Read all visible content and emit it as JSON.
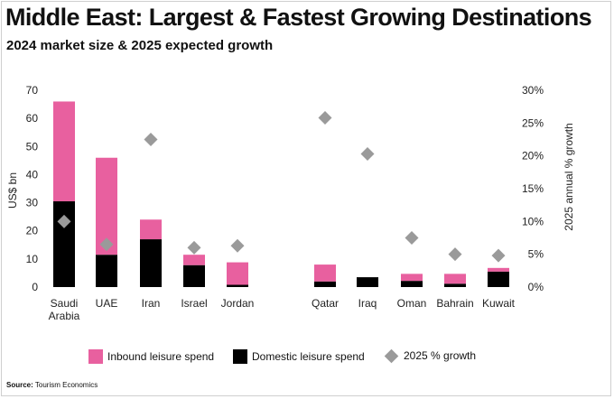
{
  "title": "Middle East: Largest & Fastest Growing Destinations",
  "subtitle": "2024 market size & 2025 expected growth",
  "source_label": "Source:",
  "source_text": "Tourism Economics",
  "colors": {
    "inbound": "#e8609f",
    "domestic": "#000000",
    "growth": "#9a9a9a"
  },
  "legend": {
    "inbound": "Inbound leisure spend",
    "domestic": "Domestic leisure spend",
    "growth": "2025 % growth"
  },
  "chart_data": {
    "type": "bar",
    "stacked": true,
    "categories": [
      "Saudi\nArabia",
      "UAE",
      "Iran",
      "Israel",
      "Jordan",
      "Qatar",
      "Iraq",
      "Oman",
      "Bahrain",
      "Kuwait"
    ],
    "series": [
      {
        "name": "Domestic leisure spend",
        "axis": "left",
        "values": [
          30.5,
          11.5,
          17,
          7.8,
          0.8,
          2,
          3.5,
          2.2,
          1.2,
          5.5
        ]
      },
      {
        "name": "Inbound leisure spend",
        "axis": "left",
        "values": [
          35.5,
          34.5,
          7,
          3.7,
          8,
          6,
          0,
          2.5,
          3.5,
          1.3
        ]
      },
      {
        "name": "2025 % growth",
        "axis": "right",
        "type": "scatter",
        "marker": "diamond",
        "values": [
          10,
          6.5,
          22.5,
          6,
          6.3,
          25.8,
          20.3,
          7.5,
          5,
          4.8
        ]
      }
    ],
    "ylabel": "US$ bn",
    "ylim": [
      0,
      70
    ],
    "yticks": [
      0,
      10,
      20,
      30,
      40,
      50,
      60,
      70
    ],
    "y2label": "2025 annual % growth",
    "y2lim": [
      0,
      30
    ],
    "y2ticks": [
      "0%",
      "5%",
      "10%",
      "15%",
      "20%",
      "25%",
      "30%"
    ],
    "grid": false,
    "legend_position": "bottom"
  }
}
